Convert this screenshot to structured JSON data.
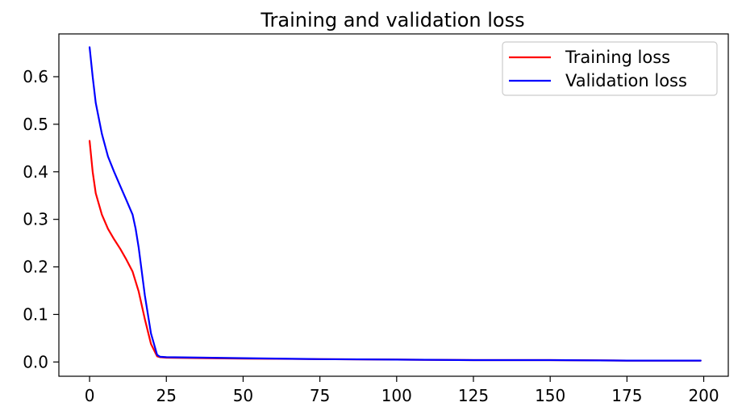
{
  "chart_data": {
    "type": "line",
    "title": "Training and validation loss",
    "xlabel": "",
    "ylabel": "",
    "xlim": [
      -10,
      208
    ],
    "ylim": [
      -0.03,
      0.69
    ],
    "xticks": [
      0,
      25,
      50,
      75,
      100,
      125,
      150,
      175,
      200
    ],
    "yticks": [
      0.0,
      0.1,
      0.2,
      0.3,
      0.4,
      0.5,
      0.6
    ],
    "grid": false,
    "legend_position": "top-right",
    "series": [
      {
        "name": "Training loss",
        "color": "#ff0000",
        "x": [
          0,
          1,
          2,
          4,
          6,
          8,
          10,
          12,
          14,
          16,
          18,
          20,
          22,
          23,
          25,
          50,
          75,
          100,
          125,
          150,
          175,
          199
        ],
        "y": [
          0.465,
          0.4,
          0.355,
          0.31,
          0.28,
          0.258,
          0.238,
          0.215,
          0.19,
          0.148,
          0.09,
          0.038,
          0.012,
          0.01,
          0.009,
          0.007,
          0.006,
          0.005,
          0.004,
          0.004,
          0.003,
          0.003
        ]
      },
      {
        "name": "Validation loss",
        "color": "#0000ff",
        "x": [
          0,
          1,
          2,
          4,
          6,
          8,
          10,
          12,
          14,
          15,
          16,
          18,
          20,
          22,
          23,
          25,
          50,
          75,
          100,
          125,
          150,
          175,
          199
        ],
        "y": [
          0.662,
          0.6,
          0.545,
          0.48,
          0.432,
          0.4,
          0.37,
          0.34,
          0.31,
          0.28,
          0.24,
          0.14,
          0.06,
          0.015,
          0.011,
          0.01,
          0.008,
          0.006,
          0.005,
          0.004,
          0.004,
          0.003,
          0.003
        ]
      }
    ]
  }
}
